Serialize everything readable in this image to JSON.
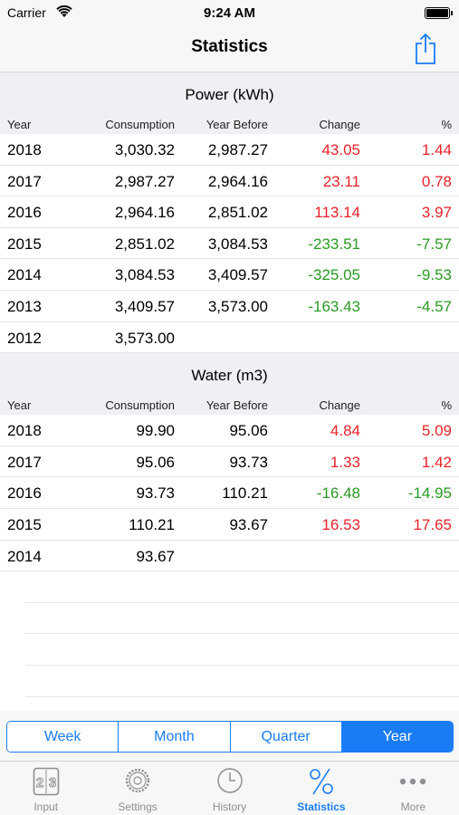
{
  "status": {
    "carrier": "Carrier",
    "time": "9:24 AM"
  },
  "nav": {
    "title": "Statistics"
  },
  "sections": [
    {
      "title": "Power (kWh)",
      "headers": {
        "year": "Year",
        "consumption": "Consumption",
        "year_before": "Year Before",
        "change": "Change",
        "pct": "%"
      },
      "rows": [
        {
          "year": "2018",
          "consumption": "3,030.32",
          "year_before": "2,987.27",
          "change": "43.05",
          "pct": "1.44",
          "trend": "red"
        },
        {
          "year": "2017",
          "consumption": "2,987.27",
          "year_before": "2,964.16",
          "change": "23.11",
          "pct": "0.78",
          "trend": "red"
        },
        {
          "year": "2016",
          "consumption": "2,964.16",
          "year_before": "2,851.02",
          "change": "113.14",
          "pct": "3.97",
          "trend": "red"
        },
        {
          "year": "2015",
          "consumption": "2,851.02",
          "year_before": "3,084.53",
          "change": "-233.51",
          "pct": "-7.57",
          "trend": "green"
        },
        {
          "year": "2014",
          "consumption": "3,084.53",
          "year_before": "3,409.57",
          "change": "-325.05",
          "pct": "-9.53",
          "trend": "green"
        },
        {
          "year": "2013",
          "consumption": "3,409.57",
          "year_before": "3,573.00",
          "change": "-163.43",
          "pct": "-4.57",
          "trend": "green"
        },
        {
          "year": "2012",
          "consumption": "3,573.00",
          "year_before": "",
          "change": "",
          "pct": "",
          "trend": ""
        }
      ]
    },
    {
      "title": "Water (m3)",
      "headers": {
        "year": "Year",
        "consumption": "Consumption",
        "year_before": "Year Before",
        "change": "Change",
        "pct": "%"
      },
      "rows": [
        {
          "year": "2018",
          "consumption": "99.90",
          "year_before": "95.06",
          "change": "4.84",
          "pct": "5.09",
          "trend": "red"
        },
        {
          "year": "2017",
          "consumption": "95.06",
          "year_before": "93.73",
          "change": "1.33",
          "pct": "1.42",
          "trend": "red"
        },
        {
          "year": "2016",
          "consumption": "93.73",
          "year_before": "110.21",
          "change": "-16.48",
          "pct": "-14.95",
          "trend": "green"
        },
        {
          "year": "2015",
          "consumption": "110.21",
          "year_before": "93.67",
          "change": "16.53",
          "pct": "17.65",
          "trend": "red"
        },
        {
          "year": "2014",
          "consumption": "93.67",
          "year_before": "",
          "change": "",
          "pct": "",
          "trend": ""
        }
      ]
    }
  ],
  "segments": {
    "items": [
      "Week",
      "Month",
      "Quarter",
      "Year"
    ],
    "selected": "Year"
  },
  "tabs": {
    "items": [
      {
        "label": "Input",
        "icon": "input-23-icon"
      },
      {
        "label": "Settings",
        "icon": "gear-icon"
      },
      {
        "label": "History",
        "icon": "clock-icon"
      },
      {
        "label": "Statistics",
        "icon": "percent-icon"
      },
      {
        "label": "More",
        "icon": "more-dots-icon"
      }
    ],
    "active": "Statistics"
  },
  "colors": {
    "accent": "#1a7cf5",
    "increase": "#e8222a",
    "decrease": "#2a9a22",
    "section_bg": "#efeff4"
  }
}
